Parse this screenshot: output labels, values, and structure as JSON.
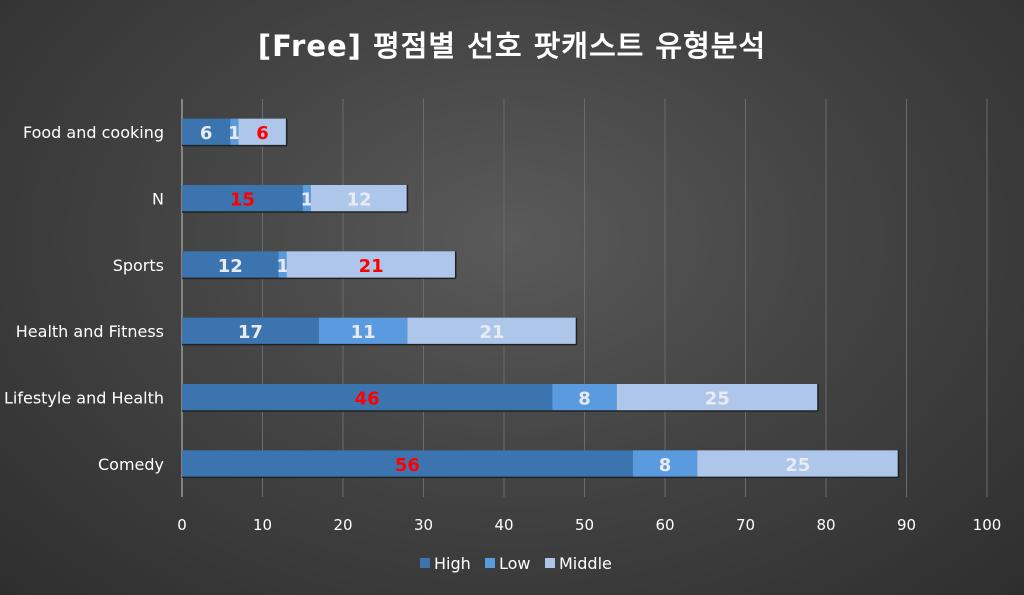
{
  "chart_data": {
    "type": "bar",
    "orientation": "horizontal",
    "stacked": true,
    "title": "[Free] 평점별 선호 팟캐스트 유형분석",
    "categories": [
      "Food and cooking",
      "N",
      "Sports",
      "Health and Fitness",
      "Lifestyle and Health",
      "Comedy"
    ],
    "series": [
      {
        "name": "High",
        "values": [
          6,
          15,
          12,
          17,
          46,
          56
        ],
        "color": "#3c74b0"
      },
      {
        "name": "Low",
        "values": [
          1,
          1,
          1,
          11,
          8,
          8
        ],
        "color": "#5a9be0"
      },
      {
        "name": "Middle",
        "values": [
          6,
          12,
          21,
          21,
          25,
          25
        ],
        "color": "#aec6ea"
      }
    ],
    "highlighted_labels": [
      {
        "series": "Middle",
        "category": "Food and cooking"
      },
      {
        "series": "High",
        "category": "N"
      },
      {
        "series": "Middle",
        "category": "Sports"
      },
      {
        "series": "High",
        "category": "Lifestyle and Health"
      },
      {
        "series": "High",
        "category": "Comedy"
      }
    ],
    "highlight_color": "#ff0000",
    "label_color": "#e8ecf2",
    "xlim": [
      0,
      100
    ],
    "xticks": [
      0,
      10,
      20,
      30,
      40,
      50,
      60,
      70,
      80,
      90,
      100
    ],
    "grid": true,
    "legend_position": "bottom"
  }
}
